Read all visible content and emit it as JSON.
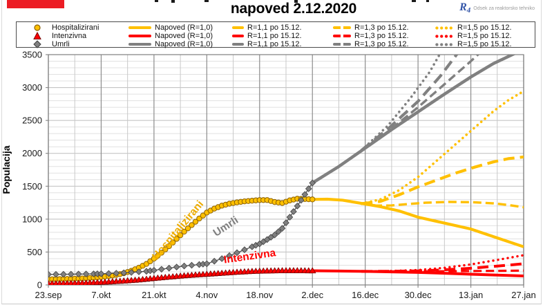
{
  "header": {
    "title": "napoved 2.12.2020",
    "logo": {
      "mark": "R",
      "mark_sub": "4",
      "division": "Odsek za reaktorsko tehniko"
    }
  },
  "legend": {
    "position": "top",
    "rows": [
      {
        "name": "Hospitalizirani",
        "marker": "circle",
        "color": "#FFC000"
      },
      {
        "name": "Intenzivna",
        "marker": "triangle",
        "color": "#FF0000"
      },
      {
        "name": "Umrli",
        "marker": "diamond",
        "color": "#808080"
      }
    ],
    "col_labels": [
      "Napoved (R=1,0)",
      "R=1,1 po 15.12.",
      "R=1,3 po 15.12.",
      "R=1,5 po 15.12."
    ]
  },
  "chart_data": {
    "type": "line",
    "title": "napoved 2.12.2020",
    "xlabel": "",
    "ylabel": "Populacija",
    "ylim": [
      0,
      3500
    ],
    "y_major_step": 500,
    "y_minor_step": 100,
    "y_tick_labels": [
      "0",
      "500",
      "1000",
      "1500",
      "2000",
      "2500",
      "3000",
      "3500"
    ],
    "x_tick_labels": [
      "23.sep",
      "7.okt",
      "21.okt",
      "4.nov",
      "18.nov",
      "2.dec",
      "16.dec",
      "30.dec",
      "13.jan",
      "27.jan"
    ],
    "x_tick_days": [
      0,
      14,
      28,
      42,
      56,
      70,
      84,
      98,
      112,
      126
    ],
    "x_minor_days": [
      7,
      21,
      35,
      49,
      63,
      77,
      91,
      105,
      119
    ],
    "x_range_days": [
      0,
      126
    ],
    "grid": true,
    "forecast_branch_day": 83,
    "series": [
      {
        "name": "Hospitalizirani R=1,5 po 15.12.",
        "color": "#FFC000",
        "style": "dot",
        "width": 3.6,
        "points": [
          [
            83,
            1235
          ],
          [
            88,
            1300
          ],
          [
            93,
            1440
          ],
          [
            98,
            1640
          ],
          [
            103,
            1890
          ],
          [
            108,
            2140
          ],
          [
            113,
            2390
          ],
          [
            118,
            2640
          ],
          [
            122,
            2810
          ],
          [
            126,
            2945
          ]
        ]
      },
      {
        "name": "Hospitalizirani R=1,3 po 15.12.",
        "color": "#FFC000",
        "style": "longdash",
        "width": 4.2,
        "points": [
          [
            83,
            1235
          ],
          [
            88,
            1270
          ],
          [
            93,
            1370
          ],
          [
            98,
            1490
          ],
          [
            103,
            1595
          ],
          [
            108,
            1700
          ],
          [
            113,
            1790
          ],
          [
            118,
            1870
          ],
          [
            122,
            1920
          ],
          [
            126,
            1945
          ]
        ]
      },
      {
        "name": "Hospitalizirani R=1,1 po 15.12.",
        "color": "#FFC000",
        "style": "dash",
        "width": 3.4,
        "points": [
          [
            83,
            1235
          ],
          [
            87,
            1205
          ],
          [
            91,
            1208
          ],
          [
            95,
            1228
          ],
          [
            100,
            1250
          ],
          [
            106,
            1262
          ],
          [
            112,
            1258
          ],
          [
            118,
            1240
          ],
          [
            122,
            1215
          ],
          [
            126,
            1180
          ]
        ]
      },
      {
        "name": "Intenzivna R=1,5 po 15.12.",
        "color": "#FF0000",
        "style": "dot",
        "width": 3.4,
        "points": [
          [
            83,
            206
          ],
          [
            90,
            210
          ],
          [
            98,
            226
          ],
          [
            105,
            260
          ],
          [
            112,
            312
          ],
          [
            119,
            380
          ],
          [
            126,
            452
          ]
        ]
      },
      {
        "name": "Intenzivna R=1,3 po 15.12.",
        "color": "#FF0000",
        "style": "longdash",
        "width": 4,
        "points": [
          [
            83,
            206
          ],
          [
            90,
            208
          ],
          [
            98,
            214
          ],
          [
            105,
            230
          ],
          [
            112,
            254
          ],
          [
            119,
            286
          ],
          [
            126,
            322
          ]
        ]
      },
      {
        "name": "Intenzivna R=1,1 po 15.12.",
        "color": "#FF0000",
        "style": "dash",
        "width": 3.2,
        "points": [
          [
            83,
            206
          ],
          [
            90,
            206
          ],
          [
            98,
            206
          ],
          [
            105,
            208
          ],
          [
            112,
            211
          ],
          [
            119,
            214
          ],
          [
            126,
            218
          ]
        ]
      },
      {
        "name": "Umrli R=1,5 po 15.12.",
        "color": "#808080",
        "style": "dot",
        "width": 3.6,
        "points": [
          [
            83,
            2045
          ],
          [
            90,
            2420
          ],
          [
            96,
            2840
          ],
          [
            101,
            3230
          ],
          [
            104,
            3530
          ]
        ]
      },
      {
        "name": "Umrli R=1,3 po 15.12.",
        "color": "#808080",
        "style": "longdash",
        "width": 4.2,
        "points": [
          [
            83,
            2045
          ],
          [
            90,
            2370
          ],
          [
            98,
            2790
          ],
          [
            104,
            3180
          ],
          [
            109,
            3560
          ]
        ]
      },
      {
        "name": "Umrli R=1,1 po 15.12.",
        "color": "#808080",
        "style": "dash",
        "width": 3.4,
        "points": [
          [
            83,
            2045
          ],
          [
            90,
            2330
          ],
          [
            98,
            2700
          ],
          [
            105,
            3050
          ],
          [
            112,
            3400
          ],
          [
            115,
            3560
          ]
        ]
      },
      {
        "name": "Hospitalizirani Napoved (R=1,0)",
        "color": "#FFC000",
        "style": "solid",
        "width": 4.2,
        "points": [
          [
            70,
            1300
          ],
          [
            74,
            1303
          ],
          [
            78,
            1288
          ],
          [
            83,
            1240
          ],
          [
            88,
            1190
          ],
          [
            93,
            1125
          ],
          [
            98,
            1030
          ],
          [
            105,
            940
          ],
          [
            112,
            850
          ],
          [
            119,
            715
          ],
          [
            126,
            580
          ]
        ]
      },
      {
        "name": "Intenzivna Napoved (R=1,0)",
        "color": "#FF0000",
        "style": "solid",
        "width": 4,
        "points": [
          [
            70,
            215
          ],
          [
            77,
            212
          ],
          [
            84,
            206
          ],
          [
            91,
            198
          ],
          [
            98,
            190
          ],
          [
            105,
            177
          ],
          [
            112,
            163
          ],
          [
            119,
            150
          ],
          [
            126,
            137
          ]
        ]
      },
      {
        "name": "Umrli Napoved (R=1,0)",
        "color": "#808080",
        "style": "solid",
        "width": 4.5,
        "points": [
          [
            70,
            1550
          ],
          [
            77,
            1800
          ],
          [
            84,
            2080
          ],
          [
            91,
            2360
          ],
          [
            98,
            2630
          ],
          [
            105,
            2900
          ],
          [
            112,
            3160
          ],
          [
            118,
            3365
          ],
          [
            123,
            3500
          ],
          [
            126,
            3580
          ]
        ]
      },
      {
        "name": "Hospitalizirani (podatki)",
        "color": "#FFC000",
        "style": "markers",
        "marker": "circle",
        "marker_stroke": "#8A6000",
        "line_color": "#E2A300",
        "points": [
          [
            0,
            85
          ],
          [
            2,
            88
          ],
          [
            4,
            90
          ],
          [
            6,
            93
          ],
          [
            8,
            97
          ],
          [
            10,
            102
          ],
          [
            12,
            110
          ],
          [
            14,
            120
          ],
          [
            16,
            135
          ],
          [
            18,
            152
          ],
          [
            20,
            178
          ],
          [
            22,
            215
          ],
          [
            24,
            262
          ],
          [
            26,
            320
          ],
          [
            28,
            400
          ],
          [
            30,
            490
          ],
          [
            32,
            590
          ],
          [
            34,
            700
          ],
          [
            36,
            810
          ],
          [
            38,
            910
          ],
          [
            40,
            1010
          ],
          [
            42,
            1100
          ],
          [
            44,
            1160
          ],
          [
            46,
            1205
          ],
          [
            48,
            1235
          ],
          [
            50,
            1255
          ],
          [
            52,
            1270
          ],
          [
            54,
            1280
          ],
          [
            56,
            1290
          ],
          [
            58,
            1290
          ],
          [
            60,
            1260
          ],
          [
            62,
            1245
          ],
          [
            64,
            1285
          ],
          [
            66,
            1310
          ],
          [
            68,
            1305
          ],
          [
            70,
            1300
          ]
        ]
      },
      {
        "name": "Intenzivna (podatki)",
        "color": "#FF0000",
        "style": "markers",
        "marker": "triangle",
        "marker_stroke": "#7A0000",
        "line_color": "#A50000",
        "points": [
          [
            0,
            20
          ],
          [
            2,
            21
          ],
          [
            4,
            23
          ],
          [
            6,
            25
          ],
          [
            8,
            27
          ],
          [
            10,
            30
          ],
          [
            12,
            35
          ],
          [
            14,
            40
          ],
          [
            16,
            46
          ],
          [
            18,
            53
          ],
          [
            20,
            60
          ],
          [
            22,
            68
          ],
          [
            24,
            77
          ],
          [
            26,
            88
          ],
          [
            28,
            100
          ],
          [
            30,
            110
          ],
          [
            32,
            120
          ],
          [
            34,
            130
          ],
          [
            36,
            140
          ],
          [
            38,
            148
          ],
          [
            40,
            156
          ],
          [
            42,
            163
          ],
          [
            44,
            170
          ],
          [
            46,
            178
          ],
          [
            48,
            186
          ],
          [
            50,
            194
          ],
          [
            52,
            200
          ],
          [
            54,
            206
          ],
          [
            56,
            210
          ],
          [
            58,
            213
          ],
          [
            60,
            215
          ],
          [
            62,
            217
          ],
          [
            64,
            218
          ],
          [
            66,
            217
          ],
          [
            68,
            216
          ],
          [
            70,
            215
          ]
        ]
      },
      {
        "name": "Umrli (podatki)",
        "color": "#808080",
        "style": "markers",
        "marker": "diamond",
        "marker_stroke": "#3F3F3F",
        "line_color": "#4D4D4D",
        "points": [
          [
            0,
            160
          ],
          [
            4,
            162
          ],
          [
            8,
            165
          ],
          [
            12,
            168
          ],
          [
            14,
            170
          ],
          [
            18,
            178
          ],
          [
            22,
            190
          ],
          [
            26,
            208
          ],
          [
            28,
            222
          ],
          [
            32,
            255
          ],
          [
            36,
            288
          ],
          [
            40,
            310
          ],
          [
            42,
            322
          ],
          [
            46,
            400
          ],
          [
            50,
            490
          ],
          [
            54,
            580
          ],
          [
            56,
            625
          ],
          [
            58,
            690
          ],
          [
            60,
            760
          ],
          [
            62,
            860
          ],
          [
            64,
            1030
          ],
          [
            66,
            1200
          ],
          [
            68,
            1375
          ],
          [
            70,
            1550
          ]
        ]
      }
    ],
    "annotations": [
      {
        "text": "Hospitalizirani",
        "day": 35,
        "value": 800,
        "rotate": -50,
        "color": "#EDAC00",
        "size": 15.5
      },
      {
        "text": "Umrli",
        "day": 47.5,
        "value": 845,
        "rotate": -33,
        "color": "#7F7F7F",
        "size": 15.5
      },
      {
        "text": "Intenzivna",
        "day": 53.5,
        "value": 385,
        "rotate": -8,
        "color": "#FF0000",
        "size": 15.5
      }
    ]
  }
}
